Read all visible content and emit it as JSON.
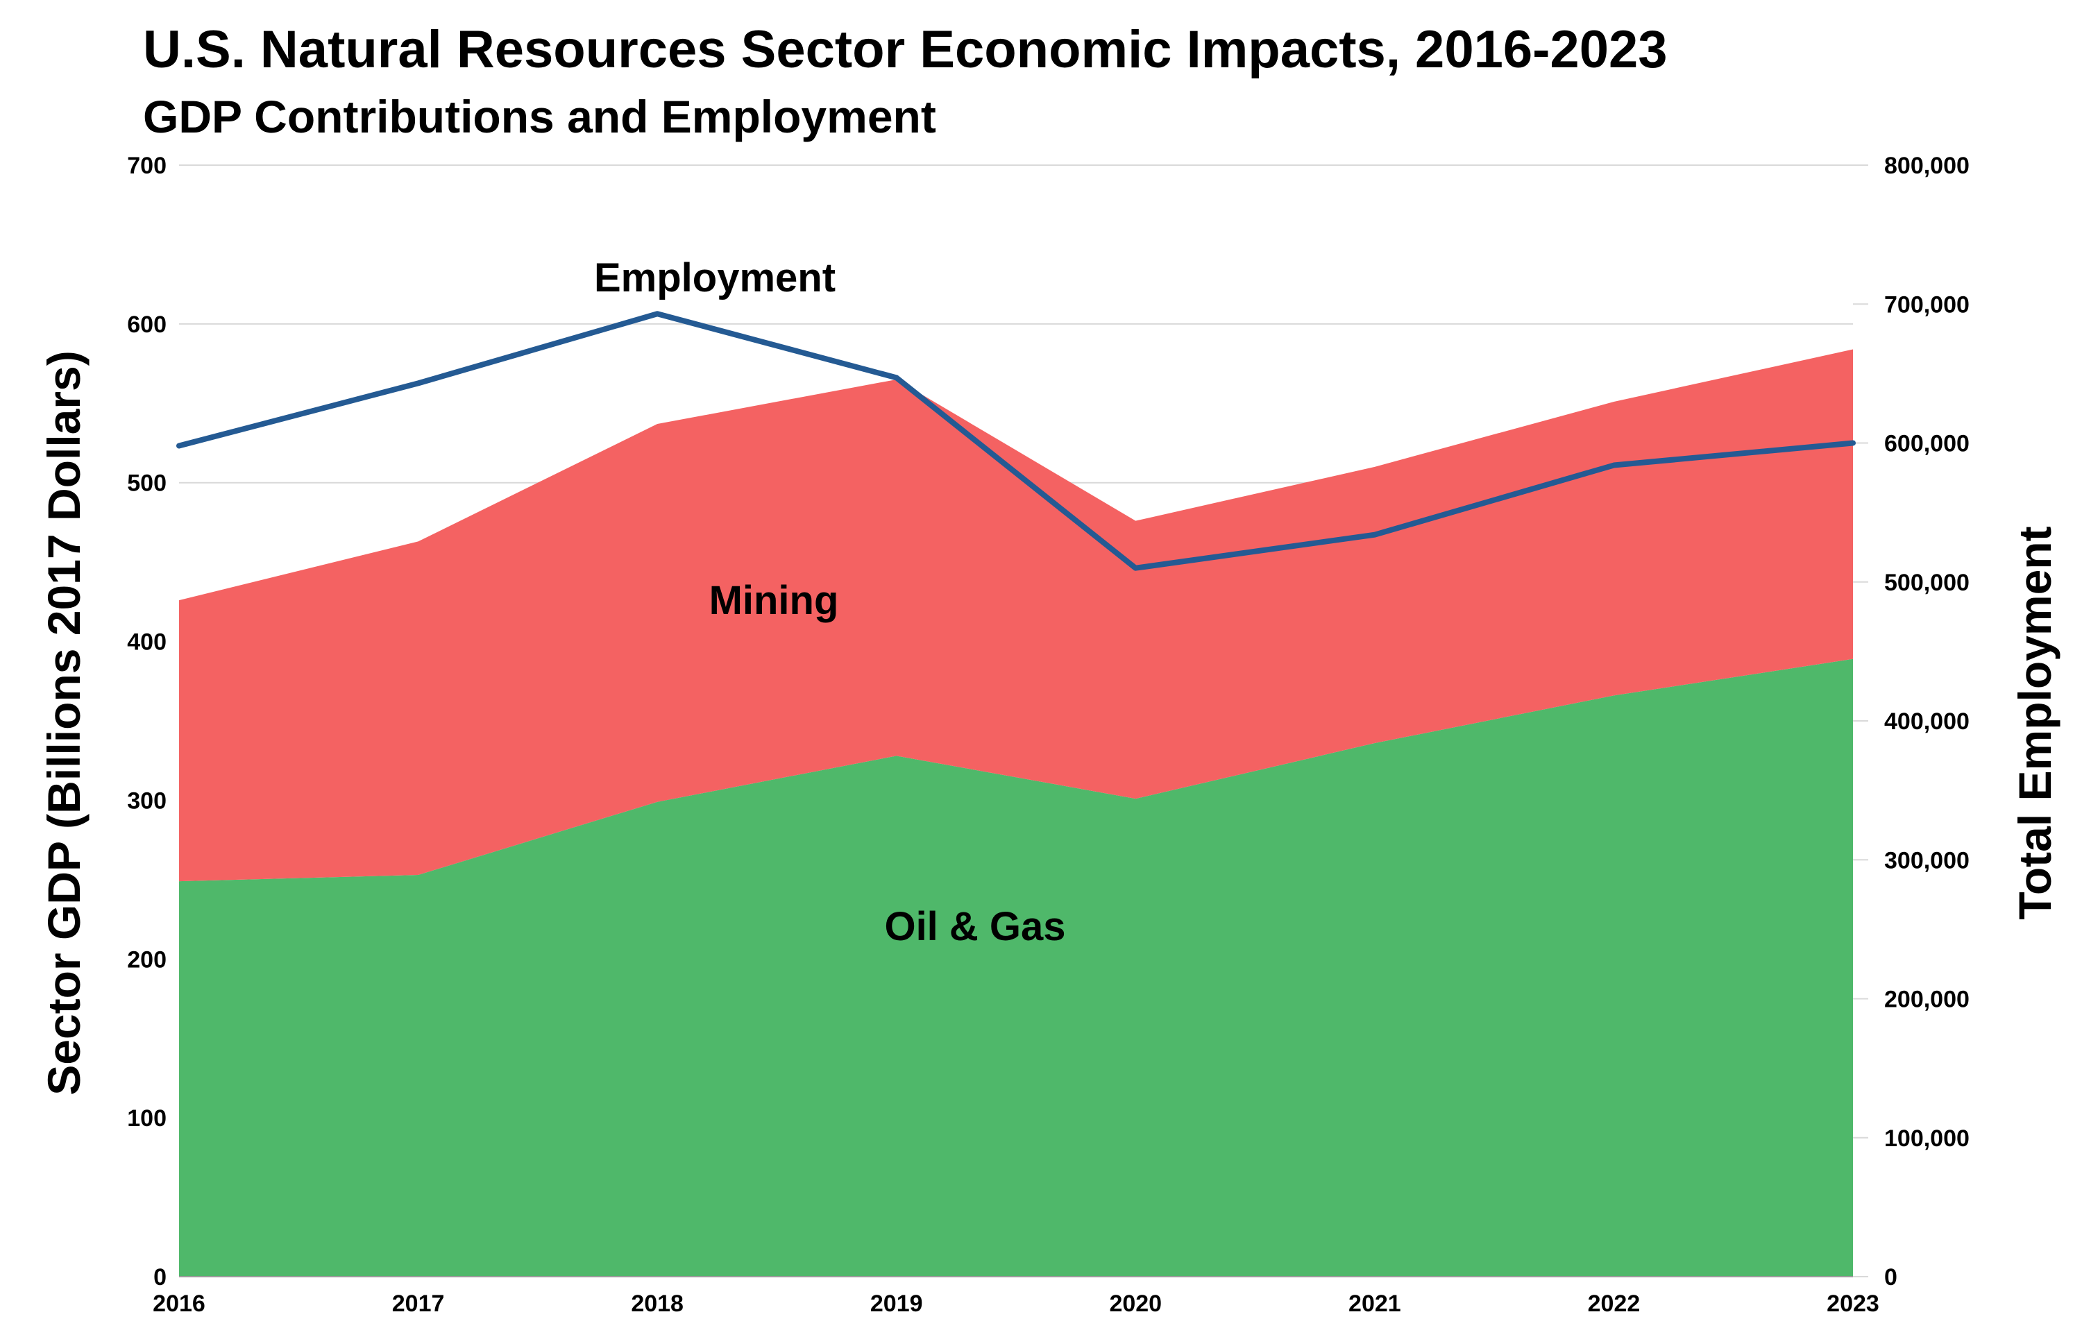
{
  "chart_data": {
    "type": "area",
    "title": "U.S. Natural Resources Sector Economic Impacts, 2016-2023",
    "subtitle": "GDP Contributions and Employment",
    "x": [
      "2016",
      "2017",
      "2018",
      "2019",
      "2020",
      "2021",
      "2022",
      "2023"
    ],
    "ylabel": "Sector GDP (Billions 2017 Dollars)",
    "y2label": "Total Employment",
    "ylim": [
      0,
      700
    ],
    "y2lim": [
      0,
      800000
    ],
    "y_ticks": [
      "0",
      "100",
      "200",
      "300",
      "400",
      "500",
      "600",
      "700"
    ],
    "y2_ticks": [
      "0",
      "100,000",
      "200,000",
      "300,000",
      "400,000",
      "500,000",
      "600,000",
      "700,000",
      "800,000"
    ],
    "grid": true,
    "series": [
      {
        "name": "Oil & Gas",
        "kind": "stacked-area",
        "axis": "left",
        "color": "#4fb86a",
        "values": [
          249,
          253,
          299,
          328,
          301,
          336,
          366,
          389
        ]
      },
      {
        "name": "Mining",
        "kind": "stacked-area",
        "axis": "left",
        "color": "#f46262",
        "values": [
          177,
          210,
          238,
          237,
          175,
          174,
          185,
          195
        ]
      },
      {
        "name": "Employment",
        "kind": "line",
        "axis": "right",
        "color": "#245a93",
        "values": [
          598000,
          643000,
          693000,
          647000,
          510000,
          534000,
          584000,
          600000
        ]
      }
    ]
  }
}
